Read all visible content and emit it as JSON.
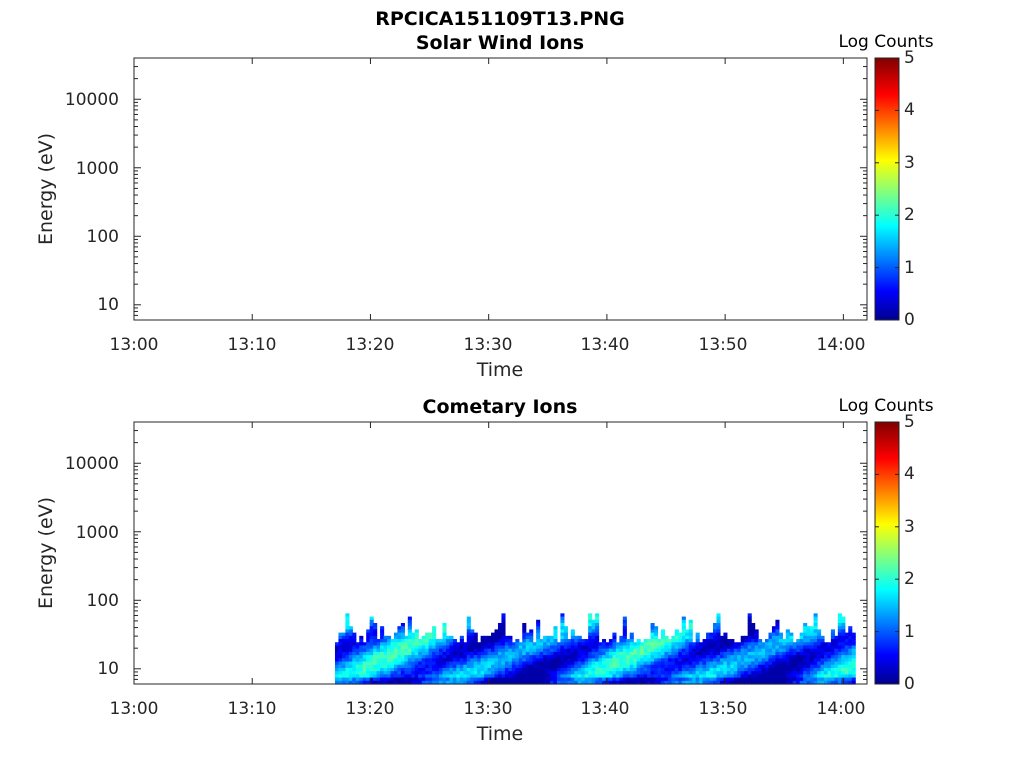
{
  "figure": {
    "filename": "RPCICA151109T13.PNG"
  },
  "chart_data": [
    {
      "type": "heatmap",
      "title": "Solar Wind Ions",
      "xlabel": "Time",
      "ylabel": "Energy (eV)",
      "x_ticks": [
        "13:00",
        "13:10",
        "13:20",
        "13:30",
        "13:40",
        "13:50",
        "14:00"
      ],
      "x_range": [
        "13:00",
        "14:02"
      ],
      "y_scale": "log",
      "y_ticks": [
        "10",
        "100",
        "1000",
        "10000"
      ],
      "y_range": [
        6,
        40000
      ],
      "colorbar": {
        "label": "Log Counts",
        "ticks": [
          "0",
          "1",
          "2",
          "3",
          "4",
          "5"
        ],
        "range": [
          0,
          5
        ],
        "colormap": "jet"
      },
      "data_present": false
    },
    {
      "type": "heatmap",
      "title": "Cometary Ions",
      "xlabel": "Time",
      "ylabel": "Energy (eV)",
      "x_ticks": [
        "13:00",
        "13:10",
        "13:20",
        "13:30",
        "13:40",
        "13:50",
        "14:00"
      ],
      "x_range": [
        "13:00",
        "14:02"
      ],
      "y_scale": "log",
      "y_ticks": [
        "10",
        "100",
        "1000",
        "10000"
      ],
      "y_range": [
        6,
        40000
      ],
      "colorbar": {
        "label": "Log Counts",
        "ticks": [
          "0",
          "1",
          "2",
          "3",
          "4",
          "5"
        ],
        "range": [
          0,
          5
        ],
        "colormap": "jet"
      },
      "data_present": true,
      "data_time_range": [
        "13:17",
        "14:01"
      ],
      "data_energy_range_eV": [
        6,
        80
      ],
      "typical_log_counts": [
        0.5,
        2.4
      ],
      "peak_log_counts": 2.4
    }
  ]
}
